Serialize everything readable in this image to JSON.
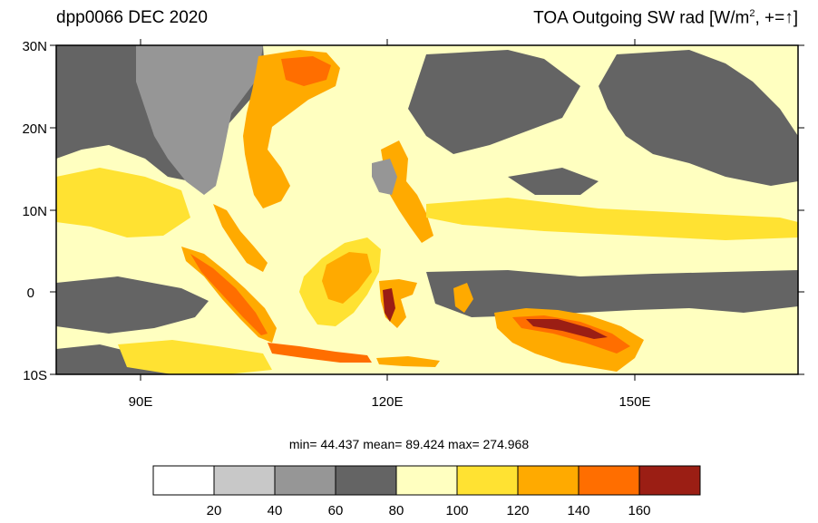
{
  "titles": {
    "left": "dpp0066 DEC 2020",
    "right_prefix": "TOA Outgoing SW rad [W/m",
    "right_sup": "2",
    "right_suffix": ", +=",
    "right_arrow": "↑",
    "right_close": "]"
  },
  "lat_labels": [
    "30N",
    "20N",
    "10N",
    "0",
    "10S"
  ],
  "lon_labels": [
    "90E",
    "120E",
    "150E"
  ],
  "stats": {
    "text": "min=  44.437   mean=  89.424   max= 274.968"
  },
  "colorbar": {
    "colors": [
      "#ffffff",
      "#c8c8c8",
      "#969696",
      "#646464",
      "#ffffc0",
      "#ffe232",
      "#ffaa00",
      "#ff6e00",
      "#9b1e14"
    ],
    "labels": [
      "20",
      "40",
      "60",
      "80",
      "100",
      "120",
      "140",
      "160"
    ]
  },
  "map_colors": {
    "ocean_clear": "#ffffc0",
    "cloud_dark": "#646464",
    "cloud_mid": "#969696",
    "land_yellow": "#ffe232",
    "land_orange": "#ffaa00",
    "land_red": "#ff6e00",
    "land_darkred": "#9b1e14"
  }
}
